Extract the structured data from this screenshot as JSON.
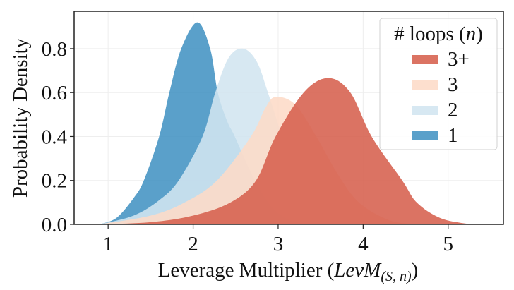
{
  "chart_data": {
    "type": "area",
    "title": "",
    "xlabel": "Leverage Multiplier (LevM_(S,n))",
    "xlabel_parts": {
      "prefix": "Leverage Multiplier (",
      "italic": "LevM",
      "subscript": "(S, n)",
      "suffix": ")"
    },
    "ylabel": "Probability Density",
    "xlim": [
      0.6,
      5.65
    ],
    "ylim": [
      0.0,
      0.97
    ],
    "xticks": [
      1,
      2,
      3,
      4,
      5
    ],
    "xtick_labels": [
      "1",
      "2",
      "3",
      "4",
      "5"
    ],
    "yticks": [
      0.0,
      0.2,
      0.4,
      0.6,
      0.8
    ],
    "ytick_labels": [
      "0.0",
      "0.2",
      "0.4",
      "0.6",
      "0.8"
    ],
    "grid": true,
    "legend": {
      "title": "# loops (n)",
      "title_parts": {
        "prefix": "# loops (",
        "italic": "n",
        "suffix": ")"
      },
      "position": "upper right",
      "entries": [
        "3+",
        "3",
        "2",
        "1"
      ]
    },
    "series": [
      {
        "name": "1",
        "color": "#4393c3",
        "alpha": 0.88,
        "peak": [
          2.05,
          0.92
        ],
        "points": [
          [
            0.9,
            0
          ],
          [
            1.1,
            0.03
          ],
          [
            1.3,
            0.12
          ],
          [
            1.42,
            0.2
          ],
          [
            1.6,
            0.4
          ],
          [
            1.72,
            0.6
          ],
          [
            1.86,
            0.8
          ],
          [
            2.05,
            0.92
          ],
          [
            2.2,
            0.8
          ],
          [
            2.29,
            0.6
          ],
          [
            2.4,
            0.47
          ],
          [
            2.49,
            0.4
          ],
          [
            2.7,
            0.22
          ],
          [
            2.9,
            0.09
          ],
          [
            3.1,
            0.025
          ],
          [
            3.3,
            0.003
          ],
          [
            3.5,
            0
          ]
        ]
      },
      {
        "name": "2",
        "color": "#d1e5f0",
        "alpha": 0.88,
        "peak": [
          2.59,
          0.8
        ],
        "points": [
          [
            0.9,
            0
          ],
          [
            1.3,
            0.04
          ],
          [
            1.6,
            0.11
          ],
          [
            1.83,
            0.2
          ],
          [
            2.11,
            0.4
          ],
          [
            2.26,
            0.6
          ],
          [
            2.42,
            0.76
          ],
          [
            2.59,
            0.8
          ],
          [
            2.75,
            0.74
          ],
          [
            2.88,
            0.6
          ],
          [
            3.05,
            0.4
          ],
          [
            3.25,
            0.2
          ],
          [
            3.45,
            0.08
          ],
          [
            3.7,
            0.02
          ],
          [
            4.0,
            0.002
          ],
          [
            4.2,
            0
          ]
        ]
      },
      {
        "name": "3",
        "color": "#fddbc7",
        "alpha": 0.88,
        "peak": [
          2.97,
          0.58
        ],
        "points": [
          [
            0.9,
            0
          ],
          [
            1.5,
            0.04
          ],
          [
            1.9,
            0.1
          ],
          [
            2.28,
            0.2
          ],
          [
            2.68,
            0.4
          ],
          [
            2.85,
            0.53
          ],
          [
            2.97,
            0.58
          ],
          [
            3.2,
            0.546
          ],
          [
            3.45,
            0.4
          ],
          [
            3.7,
            0.23
          ],
          [
            3.95,
            0.1
          ],
          [
            4.3,
            0.02
          ],
          [
            4.6,
            0.002
          ],
          [
            4.8,
            0
          ]
        ]
      },
      {
        "name": "3+",
        "color": "#d6604d",
        "alpha": 0.88,
        "peak": [
          3.59,
          0.666
        ],
        "points": [
          [
            0.9,
            0
          ],
          [
            1.5,
            0.01
          ],
          [
            2.0,
            0.04
          ],
          [
            2.44,
            0.1
          ],
          [
            2.74,
            0.2
          ],
          [
            2.97,
            0.4
          ],
          [
            3.3,
            0.6
          ],
          [
            3.59,
            0.666
          ],
          [
            3.85,
            0.6
          ],
          [
            4.1,
            0.4
          ],
          [
            4.46,
            0.2
          ],
          [
            4.63,
            0.1
          ],
          [
            4.9,
            0.03
          ],
          [
            5.2,
            0.004
          ],
          [
            5.4,
            0
          ]
        ]
      }
    ]
  }
}
